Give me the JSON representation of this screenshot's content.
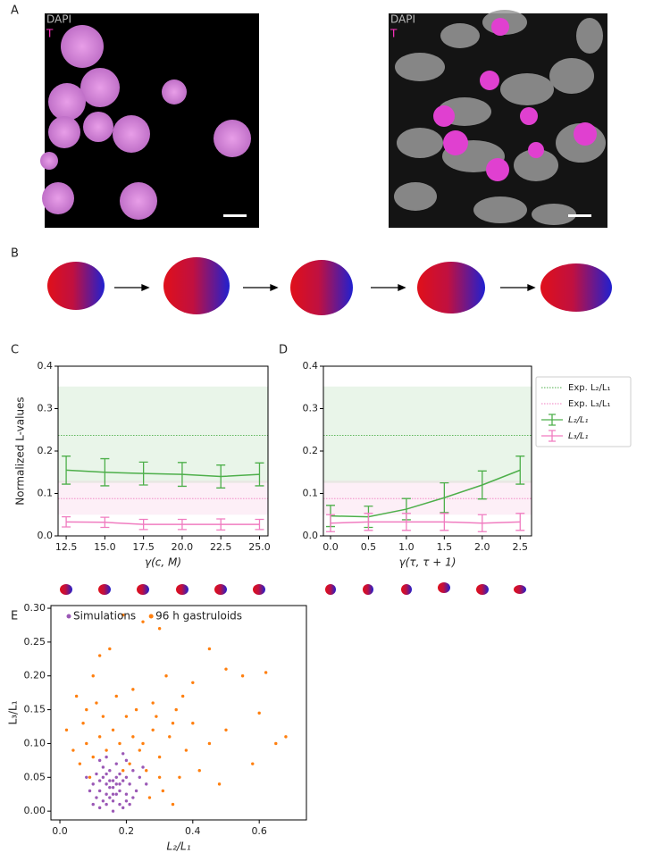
{
  "panel_labels": [
    "A",
    "B",
    "C",
    "D",
    "E"
  ],
  "panel_a": {
    "images": [
      {
        "channels": [
          "DAPI",
          "T"
        ]
      },
      {
        "channels": [
          "DAPI",
          "T"
        ]
      }
    ]
  },
  "chart_data": [
    {
      "type": "line",
      "xlabel": "γ(c, M)",
      "ylabel": "Normalized L-values",
      "x": [
        12.5,
        15,
        17.5,
        20,
        22.5,
        25
      ],
      "xlim": [
        11.975,
        25.55
      ],
      "xticks": [
        12.5,
        {
          "value": 15,
          "label": "15.0"
        },
        17.5,
        {
          "value": 20,
          "label": "20.0"
        },
        22.5,
        {
          "value": 25,
          "label": "25.0"
        }
      ],
      "ylim": [
        0,
        0.4
      ],
      "yticks": [
        {
          "value": 0,
          "label": "0.0"
        },
        0.1,
        0.2,
        0.3,
        0.4
      ],
      "references": [
        {
          "color": "#4daf4a",
          "value": 0.237,
          "band": [
            0.125,
            0.352
          ]
        },
        {
          "color": "#f07cc0",
          "value": 0.088,
          "band": [
            0.05,
            0.13
          ]
        }
      ],
      "series": [
        {
          "color": "#4daf4a",
          "values": [
            0.155,
            0.15,
            0.147,
            0.145,
            0.14,
            0.145
          ],
          "errors": [
            0.033,
            0.032,
            0.027,
            0.028,
            0.027,
            0.027
          ]
        },
        {
          "color": "#f07cc0",
          "values": [
            0.033,
            0.032,
            0.027,
            0.027,
            0.027,
            0.027
          ],
          "errors": [
            0.012,
            0.012,
            0.012,
            0.012,
            0.013,
            0.012
          ]
        }
      ]
    },
    {
      "type": "line",
      "xlabel": "γ(τ, τ + 1)",
      "x": [
        0,
        0.5,
        1,
        1.5,
        2,
        2.5
      ],
      "xlim": [
        -0.094,
        2.65
      ],
      "xticks": [
        {
          "value": 0,
          "label": "0.0"
        },
        0.5,
        {
          "value": 1,
          "label": "1.0"
        },
        1.5,
        {
          "value": 2,
          "label": "2.0"
        },
        2.5
      ],
      "ylim": [
        0,
        0.4
      ],
      "yticks": [
        {
          "value": 0,
          "label": "0.0"
        },
        0.1,
        0.2,
        0.3,
        0.4
      ],
      "references": [
        {
          "name": "Exp. L₂/L₁",
          "color": "#4daf4a",
          "value": 0.237,
          "band": [
            0.125,
            0.352
          ]
        },
        {
          "name": "Exp. L₃/L₁",
          "color": "#f07cc0",
          "value": 0.088,
          "band": [
            0.05,
            0.13
          ]
        }
      ],
      "series": [
        {
          "name": "L₂/L₁",
          "color": "#4daf4a",
          "values": [
            0.047,
            0.045,
            0.063,
            0.09,
            0.12,
            0.155
          ],
          "errors": [
            0.025,
            0.025,
            0.025,
            0.035,
            0.033,
            0.033
          ]
        },
        {
          "name": "L₃/L₁",
          "color": "#f07cc0",
          "values": [
            0.03,
            0.033,
            0.033,
            0.033,
            0.03,
            0.033
          ],
          "errors": [
            0.02,
            0.02,
            0.02,
            0.02,
            0.02,
            0.02
          ]
        }
      ]
    },
    {
      "type": "scatter",
      "xlabel": "L₂/L₁",
      "ylabel": "L₃/L₁",
      "xlim": [
        -0.027,
        0.742
      ],
      "xticks": [
        {
          "value": 0,
          "label": "0.0"
        },
        0.2,
        0.4,
        0.6
      ],
      "ylim": [
        -0.013,
        0.304
      ],
      "yticks": [
        {
          "value": 0,
          "label": "0.00"
        },
        0.05,
        {
          "value": 0.1,
          "label": "0.10"
        },
        0.15,
        {
          "value": 0.2,
          "label": "0.20"
        },
        0.25,
        {
          "value": 0.3,
          "label": "0.30"
        }
      ],
      "series": [
        {
          "name": "96 h gastruloids",
          "color": "#ff7f0e",
          "x": [
            0.02,
            0.05,
            0.08,
            0.1,
            0.12,
            0.15,
            0.19,
            0.25,
            0.3,
            0.22,
            0.28,
            0.32,
            0.35,
            0.4,
            0.45,
            0.5,
            0.55,
            0.62,
            0.68,
            0.65,
            0.58,
            0.6,
            0.5,
            0.45,
            0.4,
            0.38,
            0.42,
            0.36,
            0.33,
            0.3,
            0.28,
            0.26,
            0.24,
            0.22,
            0.2,
            0.18,
            0.16,
            0.14,
            0.12,
            0.1,
            0.08,
            0.06,
            0.04,
            0.07,
            0.11,
            0.17,
            0.23,
            0.29,
            0.34,
            0.37,
            0.31,
            0.27,
            0.34,
            0.3,
            0.25,
            0.21,
            0.19,
            0.13,
            0.09,
            0.48
          ],
          "values": [
            0.12,
            0.17,
            0.15,
            0.2,
            0.23,
            0.24,
            0.29,
            0.28,
            0.27,
            0.18,
            0.16,
            0.2,
            0.15,
            0.19,
            0.24,
            0.21,
            0.2,
            0.205,
            0.11,
            0.1,
            0.07,
            0.145,
            0.12,
            0.1,
            0.13,
            0.09,
            0.06,
            0.05,
            0.11,
            0.08,
            0.12,
            0.06,
            0.09,
            0.11,
            0.14,
            0.1,
            0.12,
            0.09,
            0.11,
            0.08,
            0.1,
            0.07,
            0.09,
            0.13,
            0.16,
            0.17,
            0.15,
            0.14,
            0.13,
            0.17,
            0.03,
            0.02,
            0.01,
            0.05,
            0.1,
            0.07,
            0.06,
            0.14,
            0.05,
            0.04
          ]
        },
        {
          "name": "Simulations",
          "color": "#9b59b6",
          "x": [
            0.12,
            0.14,
            0.16,
            0.18,
            0.15,
            0.13,
            0.17,
            0.19,
            0.2,
            0.11,
            0.14,
            0.16,
            0.18,
            0.21,
            0.22,
            0.1,
            0.09,
            0.15,
            0.17,
            0.13,
            0.2,
            0.23,
            0.24,
            0.12,
            0.16,
            0.19,
            0.14,
            0.16,
            0.18,
            0.12,
            0.15,
            0.17,
            0.13,
            0.11,
            0.2,
            0.22,
            0.08,
            0.25,
            0.14,
            0.19,
            0.16,
            0.15,
            0.18,
            0.21,
            0.1,
            0.26,
            0.12,
            0.17,
            0.14,
            0.2
          ],
          "values": [
            0.03,
            0.04,
            0.035,
            0.03,
            0.02,
            0.05,
            0.05,
            0.045,
            0.025,
            0.02,
            0.01,
            0.015,
            0.01,
            0.04,
            0.06,
            0.04,
            0.03,
            0.06,
            0.07,
            0.065,
            0.075,
            0.03,
            0.05,
            0.005,
            0,
            0.005,
            0.025,
            0.045,
            0.055,
            0.045,
            0.035,
            0.025,
            0.015,
            0.055,
            0.015,
            0.02,
            0.05,
            0.065,
            0.08,
            0.085,
            0.025,
            0.045,
            0.04,
            0.01,
            0.01,
            0.04,
            0.075,
            0.04,
            0.055,
            0.05
          ]
        }
      ],
      "legend_order": [
        1,
        0
      ]
    }
  ]
}
